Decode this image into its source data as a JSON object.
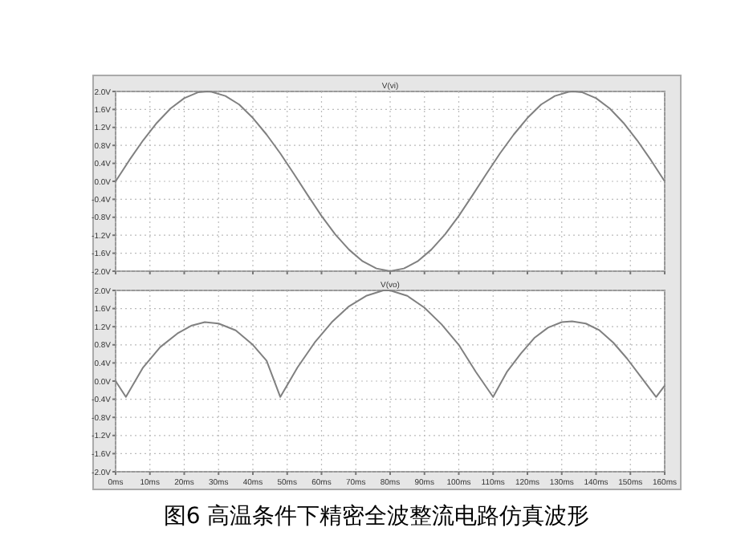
{
  "chart_data": [
    {
      "type": "line",
      "title": "V(vi)",
      "x": [
        0,
        4,
        8,
        12,
        16,
        20,
        24,
        26.7,
        28,
        32,
        36,
        40,
        44,
        48,
        52,
        56,
        60,
        64,
        68,
        72,
        76,
        80,
        84,
        88,
        92,
        96,
        100,
        104,
        108,
        112,
        116,
        120,
        124,
        128,
        132,
        133.3,
        136,
        140,
        144,
        148,
        152,
        156,
        160
      ],
      "series": [
        {
          "color": "#808080",
          "values": [
            0,
            0.47,
            0.91,
            1.3,
            1.62,
            1.85,
            1.98,
            2.0,
            1.99,
            1.9,
            1.71,
            1.41,
            1.04,
            0.62,
            0.16,
            -0.31,
            -0.77,
            -1.18,
            -1.52,
            -1.78,
            -1.94,
            -2.0,
            -1.94,
            -1.78,
            -1.52,
            -1.18,
            -0.77,
            -0.31,
            0.16,
            0.62,
            1.04,
            1.41,
            1.71,
            1.9,
            1.99,
            2.0,
            1.98,
            1.85,
            1.62,
            1.3,
            0.91,
            0.47,
            0
          ]
        }
      ],
      "xlim": [
        0,
        160
      ],
      "xticks": [
        {
          "value": 0,
          "label": null
        },
        {
          "value": 10,
          "label": null
        },
        {
          "value": 20,
          "label": null
        },
        {
          "value": 30,
          "label": null
        },
        {
          "value": 40,
          "label": null
        },
        {
          "value": 50,
          "label": null
        },
        {
          "value": 60,
          "label": null
        },
        {
          "value": 70,
          "label": null
        },
        {
          "value": 80,
          "label": null
        },
        {
          "value": 90,
          "label": null
        },
        {
          "value": 100,
          "label": null
        },
        {
          "value": 110,
          "label": null
        },
        {
          "value": 120,
          "label": null
        },
        {
          "value": 130,
          "label": null
        },
        {
          "value": 140,
          "label": null
        },
        {
          "value": 150,
          "label": null
        },
        {
          "value": 160,
          "label": null
        }
      ],
      "ylim": [
        -2,
        2
      ],
      "yticks": [
        {
          "value": -2,
          "label": "-2.0V"
        },
        {
          "value": -1.6,
          "label": "-1.6V"
        },
        {
          "value": -1.2,
          "label": "-1.2V"
        },
        {
          "value": -0.8,
          "label": "-0.8V"
        },
        {
          "value": -0.4,
          "label": "-0.4V"
        },
        {
          "value": 0,
          "label": "0.0V"
        },
        {
          "value": 0.4,
          "label": "0.4V"
        },
        {
          "value": 0.8,
          "label": "0.8V"
        },
        {
          "value": 1.2,
          "label": "1.2V"
        },
        {
          "value": 1.6,
          "label": "1.6V"
        },
        {
          "value": 2,
          "label": "2.0V"
        }
      ],
      "grid": true,
      "tick_labels": "y"
    },
    {
      "type": "line",
      "title": "V(vo)",
      "x": [
        0,
        3,
        8,
        13,
        18,
        22,
        26,
        30,
        35,
        40,
        44,
        48,
        53,
        58,
        63,
        68,
        73,
        78,
        80,
        85,
        90,
        95,
        100,
        105,
        110,
        114,
        118,
        122,
        126,
        130,
        133,
        137,
        141,
        145,
        149,
        153,
        157.5,
        160
      ],
      "series": [
        {
          "color": "#808080",
          "values": [
            0,
            -0.35,
            0.3,
            0.75,
            1.05,
            1.22,
            1.3,
            1.27,
            1.12,
            0.8,
            0.45,
            -0.35,
            0.3,
            0.85,
            1.3,
            1.65,
            1.88,
            2.0,
            2.0,
            1.88,
            1.62,
            1.25,
            0.8,
            0.2,
            -0.35,
            0.2,
            0.6,
            0.95,
            1.18,
            1.3,
            1.32,
            1.27,
            1.12,
            0.85,
            0.5,
            0.1,
            -0.35,
            -0.1
          ]
        }
      ],
      "xlim": [
        0,
        160
      ],
      "xticks": [
        {
          "value": 0,
          "label": "0ms"
        },
        {
          "value": 10,
          "label": "10ms"
        },
        {
          "value": 20,
          "label": "20ms"
        },
        {
          "value": 30,
          "label": "30ms"
        },
        {
          "value": 40,
          "label": "40ms"
        },
        {
          "value": 50,
          "label": "50ms"
        },
        {
          "value": 60,
          "label": "60ms"
        },
        {
          "value": 70,
          "label": "70ms"
        },
        {
          "value": 80,
          "label": "80ms"
        },
        {
          "value": 90,
          "label": "90ms"
        },
        {
          "value": 100,
          "label": "100ms"
        },
        {
          "value": 110,
          "label": "110ms"
        },
        {
          "value": 120,
          "label": "120ms"
        },
        {
          "value": 130,
          "label": "130ms"
        },
        {
          "value": 140,
          "label": "140ms"
        },
        {
          "value": 150,
          "label": "150ms"
        },
        {
          "value": 160,
          "label": "160ms"
        }
      ],
      "ylim": [
        -2,
        2
      ],
      "yticks": [
        {
          "value": -2,
          "label": "-2.0V"
        },
        {
          "value": -1.6,
          "label": "-1.6V"
        },
        {
          "value": -1.2,
          "label": "-1.2V"
        },
        {
          "value": -0.8,
          "label": "-0.8V"
        },
        {
          "value": -0.4,
          "label": "-0.4V"
        },
        {
          "value": 0,
          "label": "0.0V"
        },
        {
          "value": 0.4,
          "label": "0.4V"
        },
        {
          "value": 0.8,
          "label": "0.8V"
        },
        {
          "value": 1.2,
          "label": "1.2V"
        },
        {
          "value": 1.6,
          "label": "1.6V"
        },
        {
          "value": 2,
          "label": "2.0V"
        }
      ],
      "grid": true,
      "annotations": [
        "图6  高温条件下精密全波整流电路仿真波形"
      ]
    }
  ]
}
